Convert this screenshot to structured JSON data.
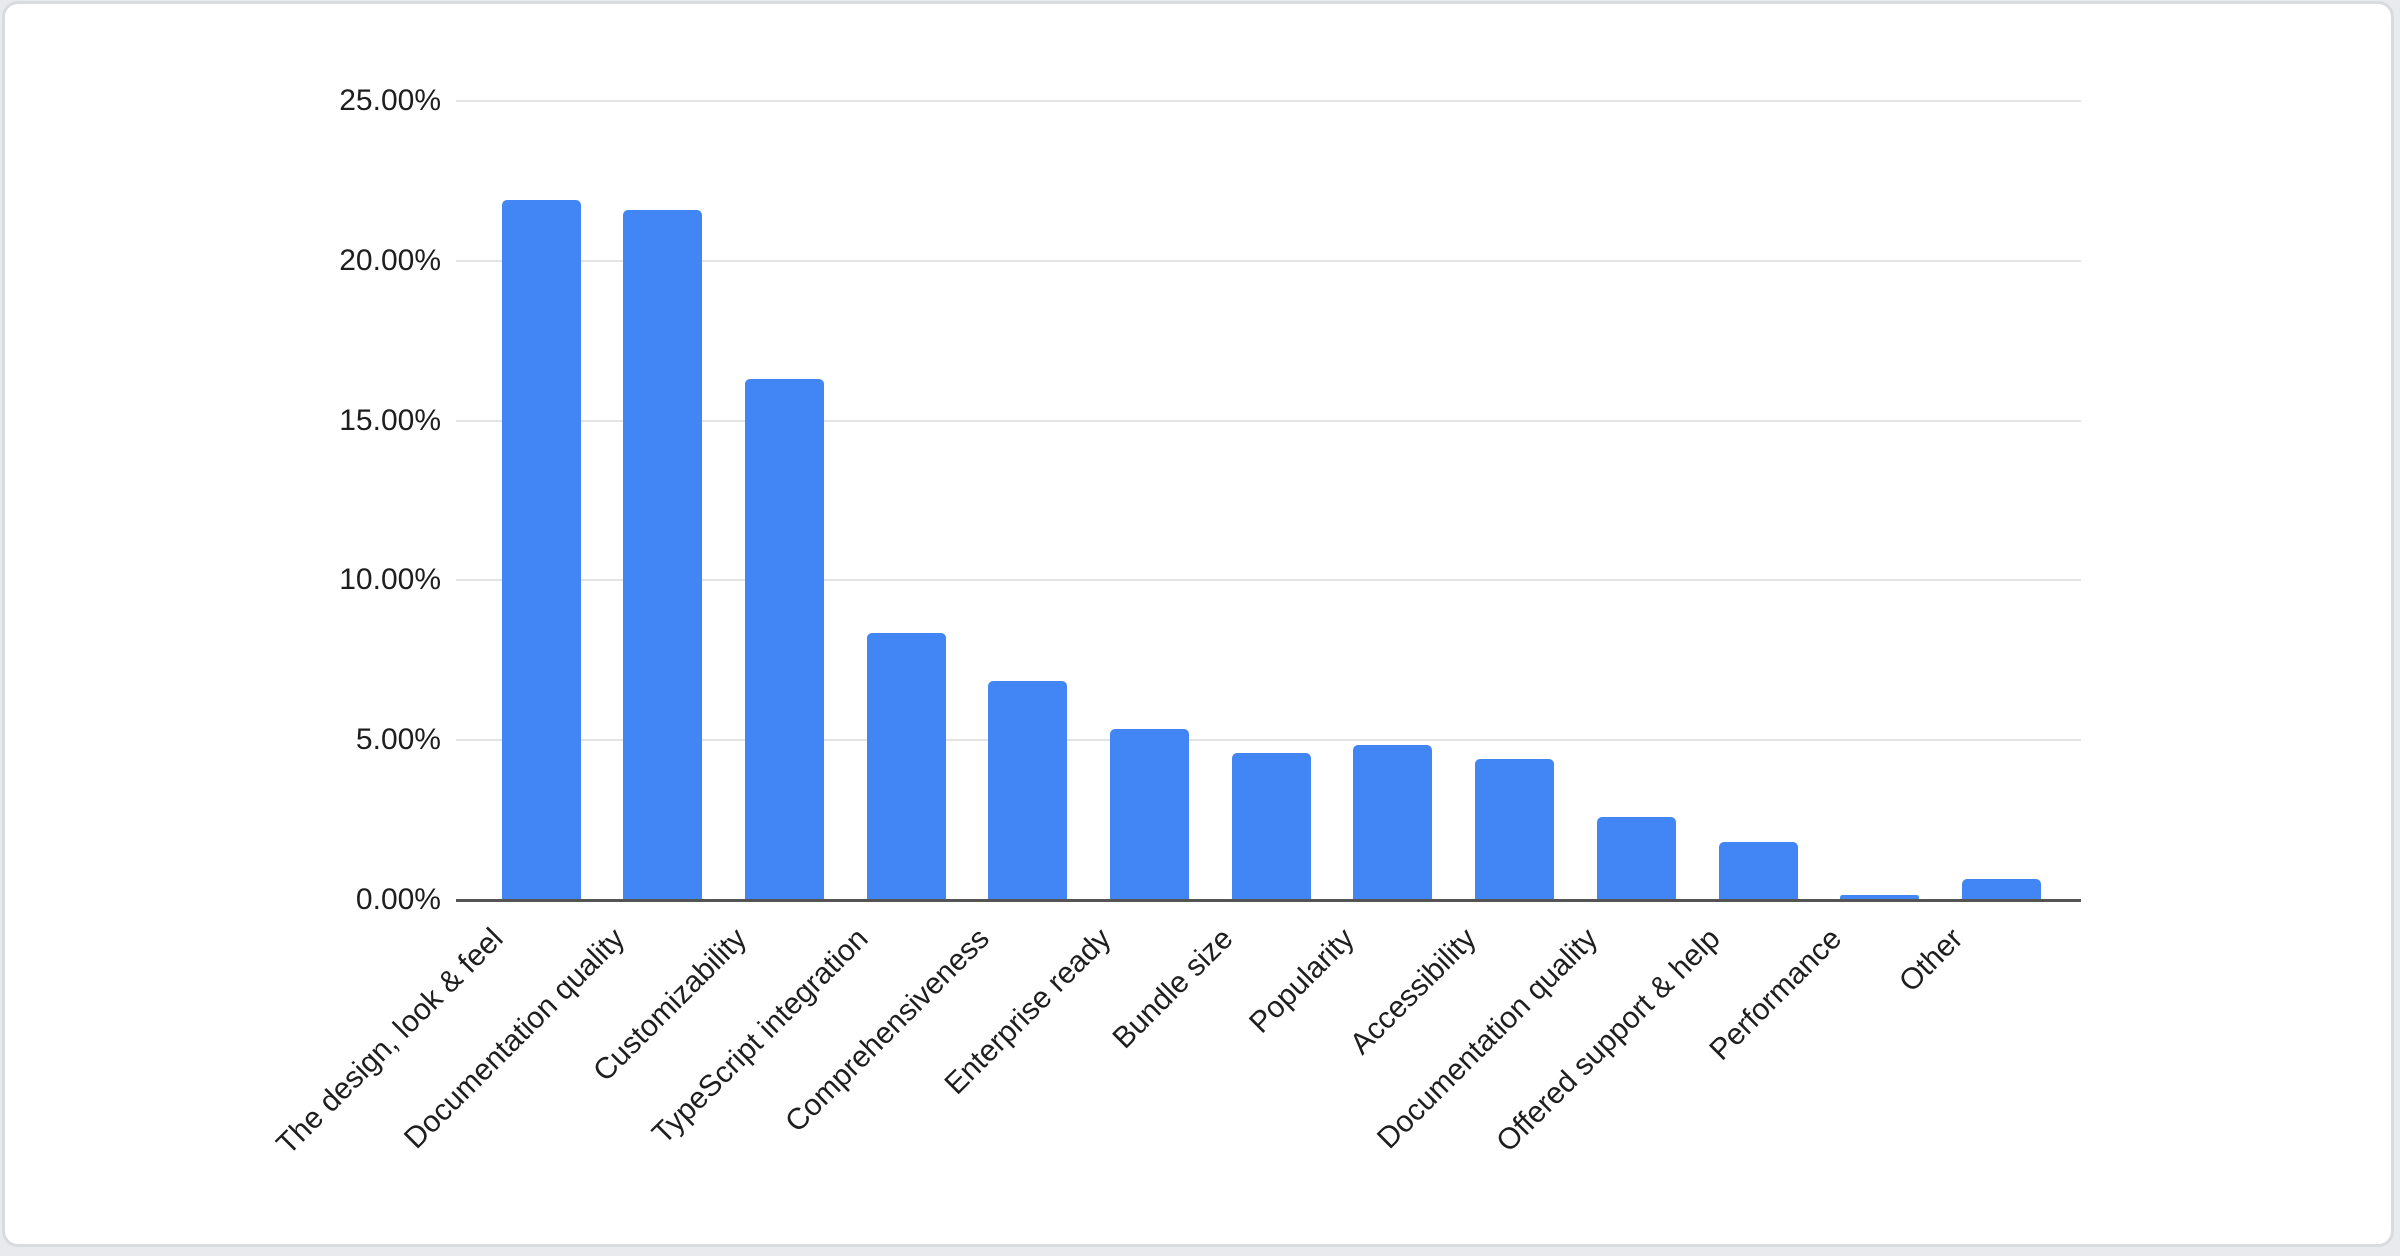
{
  "chart_data": {
    "type": "bar",
    "title": "",
    "xlabel": "",
    "ylabel": "",
    "categories": [
      "The design, look & feel",
      "Documentation quality",
      "Customizability",
      "TypeScript integration",
      "Comprehensiveness",
      "Enterprise ready",
      "Bundle size",
      "Popularity",
      "Accessibility",
      "Documentation quality",
      "Offered support & help",
      "Performance",
      "Other"
    ],
    "values": [
      21.9,
      21.6,
      16.3,
      8.35,
      6.85,
      5.35,
      4.6,
      4.85,
      4.4,
      2.6,
      1.8,
      0.15,
      0.65
    ],
    "value_format": "percent",
    "ylim": [
      0,
      25
    ],
    "y_tick_values": [
      0,
      5,
      10,
      15,
      20,
      25
    ],
    "y_tick_labels": [
      "0.00%",
      "5.00%",
      "10.00%",
      "15.00%",
      "20.00%",
      "25.00%"
    ],
    "grid": true,
    "legend": "none",
    "colors": {
      "bar": "#4285f4",
      "gridline": "#e4e4e4",
      "axis_baseline": "#545454",
      "tick_text": "#1e1e1e",
      "card_background": "#ffffff",
      "card_border": "#d9dbde",
      "page_background": "#e8eaed"
    }
  }
}
